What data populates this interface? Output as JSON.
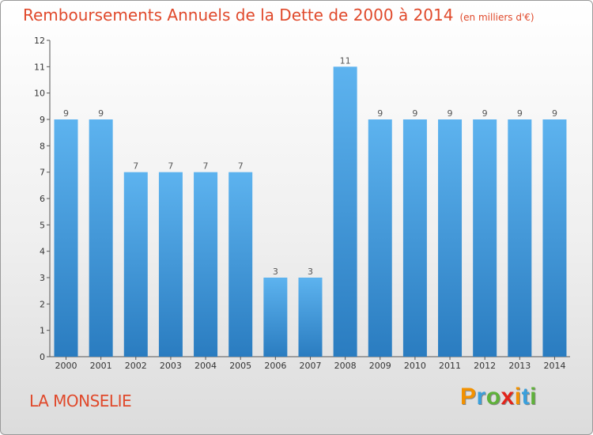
{
  "header": {
    "title": "Remboursements Annuels de la Dette de 2000 à 2014",
    "unit": "(en milliers d'€)"
  },
  "footer": {
    "place": "LA MONSELIE",
    "logo": "Proxiti"
  },
  "colors": {
    "title": "#e0492b",
    "bar_light": "#5db3ef",
    "bar_dark": "#2a7cc0",
    "logo_letters": [
      "#f29100",
      "#3aa0dc",
      "#5fb13a",
      "#e2231a",
      "#f29100",
      "#3aa0dc",
      "#5fb13a"
    ]
  },
  "chart_data": {
    "type": "bar",
    "title": "Remboursements Annuels de la Dette de 2000 à 2014",
    "xlabel": "",
    "ylabel": "",
    "categories": [
      "2000",
      "2001",
      "2002",
      "2003",
      "2004",
      "2005",
      "2006",
      "2007",
      "2008",
      "2009",
      "2010",
      "2011",
      "2012",
      "2013",
      "2014"
    ],
    "values": [
      9,
      9,
      7,
      7,
      7,
      7,
      3,
      3,
      11,
      9,
      9,
      9,
      9,
      9,
      9
    ],
    "value_labels": [
      "9",
      "9",
      "7",
      "7",
      "7",
      "7",
      "3",
      "3",
      "11",
      "9",
      "9",
      "9",
      "9",
      "9",
      "9"
    ],
    "yticks": [
      "0",
      "1",
      "2",
      "3",
      "4",
      "5",
      "6",
      "7",
      "8",
      "9",
      "10",
      "11",
      "12"
    ],
    "ylim": [
      0,
      12
    ],
    "grid": false
  }
}
